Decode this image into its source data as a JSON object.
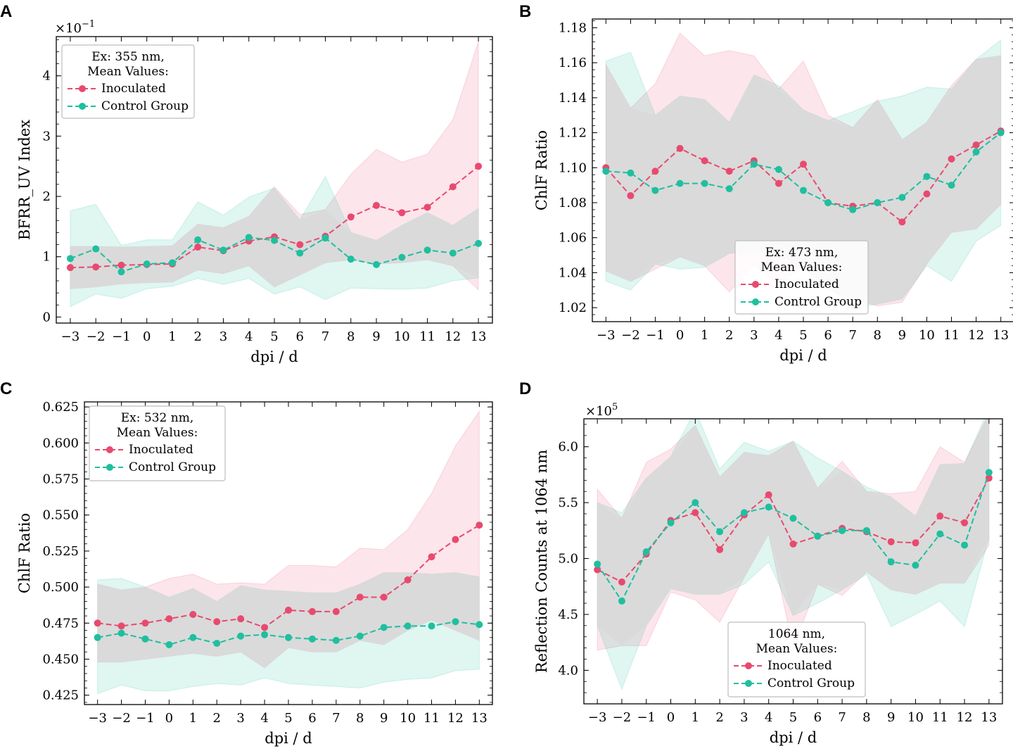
{
  "figure": {
    "colors": {
      "inoculated": "#e84a6f",
      "control": "#1fbf9f",
      "overlap": "#d9d9d9"
    },
    "x_ticks": [
      -3,
      -2,
      -1,
      0,
      1,
      2,
      3,
      4,
      5,
      6,
      7,
      8,
      9,
      10,
      11,
      12,
      13
    ]
  },
  "chart_data": [
    {
      "panel": "A",
      "type": "line",
      "xlabel": "dpi / d",
      "ylabel": "BFRR_UV Index",
      "y_multiplier": "×10^-1",
      "ylim": [
        -0.1,
        4.65
      ],
      "yticks": [
        0,
        1,
        2,
        3,
        4
      ],
      "legend": {
        "title_line1": "Ex: 355 nm,",
        "title_line2": "Mean Values:",
        "placement": "upper-left"
      },
      "x": [
        -3,
        -2,
        -1,
        0,
        1,
        2,
        3,
        4,
        5,
        6,
        7,
        8,
        9,
        10,
        11,
        12,
        13
      ],
      "series": [
        {
          "name": "Inoculated",
          "color_key": "inoculated",
          "values": [
            0.82,
            0.83,
            0.86,
            0.87,
            0.88,
            1.16,
            1.1,
            1.26,
            1.33,
            1.2,
            1.34,
            1.66,
            1.85,
            1.73,
            1.82,
            2.16,
            2.5
          ],
          "lower": [
            0.47,
            0.5,
            0.55,
            0.57,
            0.58,
            0.78,
            0.72,
            0.85,
            0.5,
            0.7,
            0.9,
            0.95,
            0.88,
            0.9,
            0.95,
            0.85,
            0.45
          ],
          "upper": [
            1.17,
            1.17,
            1.16,
            1.17,
            1.18,
            1.54,
            1.48,
            1.67,
            2.16,
            1.7,
            1.78,
            2.37,
            2.78,
            2.57,
            2.7,
            3.27,
            4.57
          ]
        },
        {
          "name": "Control Group",
          "color_key": "control",
          "values": [
            0.97,
            1.13,
            0.75,
            0.88,
            0.9,
            1.28,
            1.11,
            1.32,
            1.27,
            1.06,
            1.31,
            0.96,
            0.87,
            0.99,
            1.11,
            1.06,
            1.22
          ],
          "lower": [
            0.17,
            0.38,
            0.31,
            0.47,
            0.51,
            0.64,
            0.54,
            0.64,
            0.38,
            0.5,
            0.29,
            0.48,
            0.47,
            0.46,
            0.48,
            0.6,
            0.65
          ],
          "upper": [
            1.76,
            1.87,
            1.19,
            1.28,
            1.28,
            1.91,
            1.69,
            1.99,
            2.14,
            1.61,
            2.33,
            1.4,
            1.27,
            1.52,
            1.73,
            1.52,
            1.8
          ]
        }
      ]
    },
    {
      "panel": "B",
      "type": "line",
      "xlabel": "dpi / d",
      "ylabel": "ChlF Ratio",
      "ylim": [
        1.012,
        1.185
      ],
      "yticks": [
        1.02,
        1.04,
        1.06,
        1.08,
        1.1,
        1.12,
        1.14,
        1.16,
        1.18
      ],
      "legend": {
        "title_line1": "Ex: 473 nm,",
        "title_line2": "Mean Values:",
        "placement": "lower-center"
      },
      "x": [
        -3,
        -2,
        -1,
        0,
        1,
        2,
        3,
        4,
        5,
        6,
        7,
        8,
        9,
        10,
        11,
        12,
        13
      ],
      "series": [
        {
          "name": "Inoculated",
          "color_key": "inoculated",
          "values": [
            1.1,
            1.084,
            1.098,
            1.111,
            1.104,
            1.098,
            1.104,
            1.091,
            1.102,
            1.08,
            1.078,
            1.08,
            1.069,
            1.085,
            1.105,
            1.113,
            1.121
          ],
          "lower": [
            1.041,
            1.035,
            1.042,
            1.049,
            1.044,
            1.029,
            1.044,
            1.033,
            1.043,
            1.03,
            1.025,
            1.021,
            1.023,
            1.045,
            1.063,
            1.065,
            1.079
          ],
          "upper": [
            1.159,
            1.134,
            1.148,
            1.177,
            1.164,
            1.167,
            1.164,
            1.145,
            1.161,
            1.13,
            1.123,
            1.139,
            1.116,
            1.126,
            1.147,
            1.162,
            1.164
          ]
        },
        {
          "name": "Control Group",
          "color_key": "control",
          "values": [
            1.098,
            1.097,
            1.087,
            1.091,
            1.091,
            1.088,
            1.102,
            1.099,
            1.087,
            1.08,
            1.076,
            1.08,
            1.083,
            1.095,
            1.09,
            1.109,
            1.12
          ],
          "lower": [
            1.035,
            1.03,
            1.045,
            1.042,
            1.043,
            1.051,
            1.052,
            1.051,
            1.042,
            1.033,
            1.02,
            1.022,
            1.025,
            1.044,
            1.035,
            1.058,
            1.067
          ],
          "upper": [
            1.161,
            1.166,
            1.13,
            1.141,
            1.139,
            1.126,
            1.153,
            1.147,
            1.133,
            1.127,
            1.132,
            1.138,
            1.141,
            1.146,
            1.145,
            1.162,
            1.173
          ]
        }
      ]
    },
    {
      "panel": "C",
      "type": "line",
      "xlabel": "dpi / d",
      "ylabel": "ChlF Ratio",
      "ylim": [
        0.4185,
        0.6285
      ],
      "yticks": [
        0.425,
        0.45,
        0.475,
        0.5,
        0.525,
        0.55,
        0.575,
        0.6,
        0.625
      ],
      "legend": {
        "title_line1": "Ex: 532 nm,",
        "title_line2": "Mean Values:",
        "placement": "upper-left"
      },
      "x": [
        -3,
        -2,
        -1,
        0,
        1,
        2,
        3,
        4,
        5,
        6,
        7,
        8,
        9,
        10,
        11,
        12,
        13
      ],
      "series": [
        {
          "name": "Inoculated",
          "color_key": "inoculated",
          "values": [
            0.475,
            0.473,
            0.475,
            0.478,
            0.481,
            0.476,
            0.478,
            0.472,
            0.484,
            0.483,
            0.483,
            0.493,
            0.493,
            0.505,
            0.521,
            0.533,
            0.543
          ],
          "lower": [
            0.448,
            0.448,
            0.45,
            0.452,
            0.454,
            0.452,
            0.455,
            0.444,
            0.458,
            0.455,
            0.455,
            0.463,
            0.46,
            0.47,
            0.477,
            0.47,
            0.463
          ],
          "upper": [
            0.502,
            0.498,
            0.5,
            0.506,
            0.509,
            0.502,
            0.503,
            0.502,
            0.515,
            0.515,
            0.514,
            0.527,
            0.526,
            0.54,
            0.565,
            0.598,
            0.622
          ]
        },
        {
          "name": "Control Group",
          "color_key": "control",
          "values": [
            0.465,
            0.468,
            0.464,
            0.46,
            0.465,
            0.461,
            0.466,
            0.467,
            0.465,
            0.464,
            0.463,
            0.466,
            0.472,
            0.473,
            0.473,
            0.476,
            0.474
          ],
          "lower": [
            0.426,
            0.432,
            0.428,
            0.428,
            0.431,
            0.433,
            0.432,
            0.437,
            0.433,
            0.432,
            0.431,
            0.43,
            0.434,
            0.436,
            0.437,
            0.442,
            0.443
          ],
          "upper": [
            0.505,
            0.506,
            0.5,
            0.493,
            0.499,
            0.49,
            0.501,
            0.498,
            0.497,
            0.496,
            0.496,
            0.502,
            0.51,
            0.51,
            0.509,
            0.51,
            0.507
          ]
        }
      ]
    },
    {
      "panel": "D",
      "type": "line",
      "xlabel": "dpi / d",
      "ylabel": "Reflection Counts at 1064 nm",
      "y_multiplier": "×10^5",
      "ylim": [
        3.7,
        6.25
      ],
      "yticks": [
        4.0,
        4.5,
        5.0,
        5.5,
        6.0
      ],
      "legend": {
        "title_line1": "1064 nm,",
        "title_line2": "Mean Values:",
        "placement": "lower-center"
      },
      "x": [
        -3,
        -2,
        -1,
        0,
        1,
        2,
        3,
        4,
        5,
        6,
        7,
        8,
        9,
        10,
        11,
        12,
        13
      ],
      "series": [
        {
          "name": "Inoculated",
          "color_key": "inoculated",
          "values": [
            4.9,
            4.79,
            5.04,
            5.34,
            5.41,
            5.08,
            5.39,
            5.57,
            5.13,
            5.2,
            5.27,
            5.24,
            5.15,
            5.14,
            5.38,
            5.32,
            5.72
          ],
          "lower": [
            4.18,
            4.22,
            4.22,
            4.7,
            4.63,
            4.43,
            4.83,
            5.22,
            4.2,
            4.77,
            4.67,
            4.88,
            4.72,
            4.68,
            4.78,
            4.78,
            5.12
          ],
          "upper": [
            5.62,
            5.36,
            5.86,
            5.98,
            6.19,
            5.73,
            5.95,
            5.92,
            6.05,
            5.63,
            5.87,
            5.6,
            5.58,
            5.6,
            6.0,
            5.86,
            6.3
          ]
        },
        {
          "name": "Control Group",
          "color_key": "control",
          "values": [
            4.95,
            4.62,
            5.06,
            5.32,
            5.5,
            5.24,
            5.41,
            5.46,
            5.36,
            5.2,
            5.25,
            5.25,
            4.97,
            4.94,
            5.22,
            5.12,
            5.77
          ],
          "lower": [
            4.4,
            3.83,
            4.4,
            4.73,
            4.68,
            4.68,
            4.77,
            4.97,
            4.49,
            4.6,
            4.72,
            4.86,
            4.39,
            4.5,
            4.62,
            4.39,
            5.19
          ],
          "upper": [
            5.5,
            5.41,
            5.72,
            5.91,
            6.33,
            5.8,
            6.04,
            5.96,
            6.05,
            5.9,
            5.78,
            5.64,
            5.55,
            5.38,
            5.84,
            5.85,
            6.35
          ]
        }
      ]
    }
  ]
}
